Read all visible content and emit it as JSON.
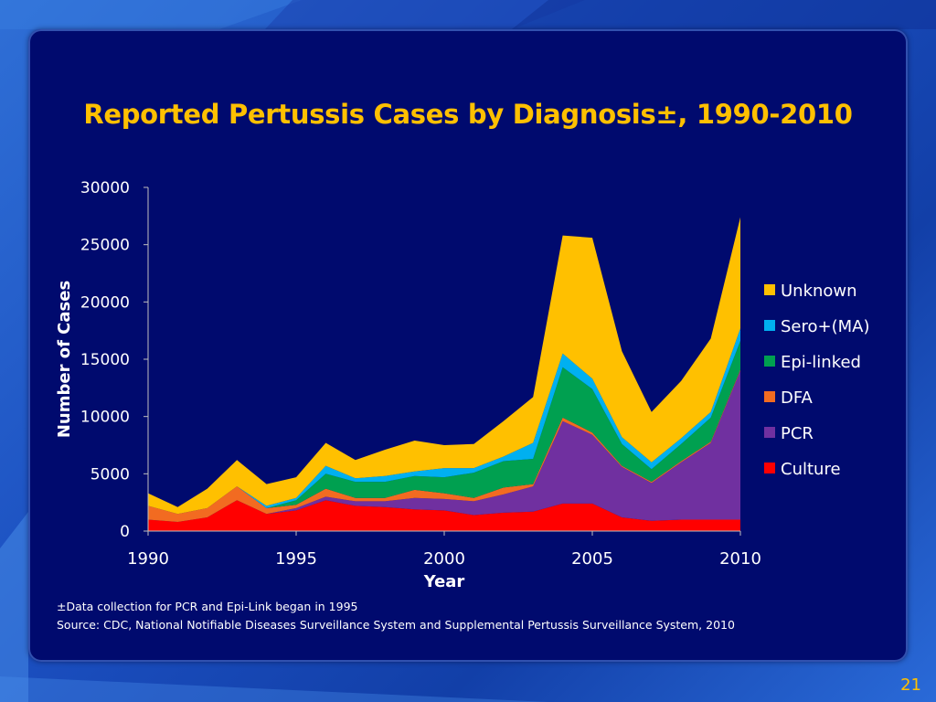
{
  "slide": {
    "title": "Reported Pertussis Cases by Diagnosis±, 1990-2010",
    "footnote_1": "±Data collection for PCR and Epi-Link began in 1995",
    "footnote_2": "Source: CDC, National Notifiable Diseases Surveillance System and Supplemental Pertussis Surveillance System, 2010",
    "page_number": "21"
  },
  "chart_data": {
    "type": "area",
    "stacked": true,
    "title": "",
    "xlabel": "Year",
    "ylabel": "Number of Cases",
    "xlim": [
      1990,
      2010
    ],
    "ylim": [
      0,
      30000
    ],
    "x_ticks": [
      1990,
      1995,
      2000,
      2005,
      2010
    ],
    "y_ticks": [
      0,
      5000,
      10000,
      15000,
      20000,
      25000,
      30000
    ],
    "legend_position": "right",
    "x": [
      1990,
      1991,
      1992,
      1993,
      1994,
      1995,
      1996,
      1997,
      1998,
      1999,
      2000,
      2001,
      2002,
      2003,
      2004,
      2005,
      2006,
      2007,
      2008,
      2009,
      2010
    ],
    "series": [
      {
        "name": "Culture",
        "color": "#ff0000",
        "values": [
          1000,
          800,
          1200,
          2700,
          1500,
          1800,
          2700,
          2200,
          2100,
          1900,
          1800,
          1400,
          1600,
          1700,
          2400,
          2400,
          1200,
          900,
          1000,
          1000,
          1000
        ]
      },
      {
        "name": "PCR",
        "color": "#7030a0",
        "values": [
          0,
          0,
          0,
          0,
          0,
          200,
          300,
          400,
          500,
          1000,
          1000,
          1200,
          1600,
          2200,
          7200,
          6000,
          4400,
          3300,
          5000,
          6700,
          13000
        ]
      },
      {
        "name": "DFA",
        "color": "#f26b21",
        "values": [
          1200,
          700,
          800,
          1200,
          500,
          300,
          700,
          300,
          300,
          700,
          500,
          300,
          600,
          200,
          300,
          200,
          100,
          100,
          100,
          100,
          100
        ]
      },
      {
        "name": "Epi-linked",
        "color": "#00a050",
        "values": [
          0,
          0,
          0,
          0,
          0,
          400,
          1300,
          1400,
          1400,
          1200,
          1400,
          2200,
          2300,
          2200,
          4400,
          3800,
          1900,
          1100,
          1500,
          2100,
          2500
        ]
      },
      {
        "name": "Sero+(MA)",
        "color": "#00b0f0",
        "values": [
          0,
          0,
          0,
          0,
          200,
          200,
          700,
          300,
          500,
          400,
          800,
          400,
          400,
          1400,
          1200,
          900,
          600,
          600,
          500,
          500,
          1100
        ]
      },
      {
        "name": "Unknown",
        "color": "#ffc000",
        "values": [
          1100,
          600,
          1700,
          2300,
          1900,
          1800,
          2000,
          1600,
          2300,
          2700,
          2000,
          2100,
          3100,
          4000,
          10300,
          12300,
          7500,
          4400,
          5000,
          6400,
          9700
        ]
      }
    ]
  }
}
